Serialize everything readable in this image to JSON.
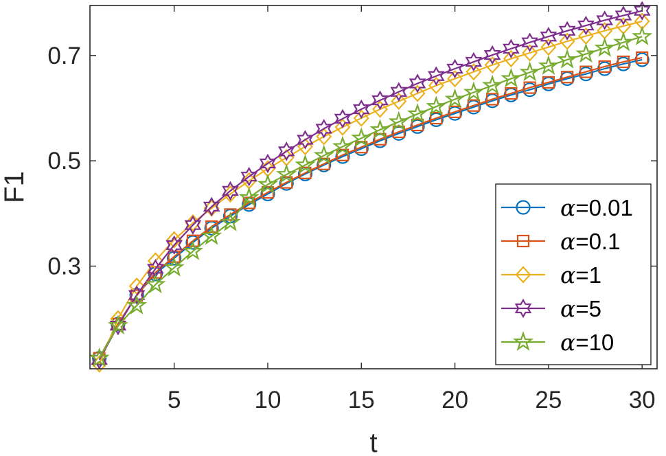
{
  "chart_data": {
    "type": "line",
    "title": "",
    "xlabel": "t",
    "ylabel": "F1",
    "xlim": [
      0.5,
      30.8
    ],
    "ylim": [
      0.105,
      0.795
    ],
    "xticks": [
      5,
      10,
      15,
      20,
      25,
      30
    ],
    "yticks": [
      0.3,
      0.5,
      0.7
    ],
    "xtick_labels": [
      "5",
      "10",
      "15",
      "20",
      "25",
      "30"
    ],
    "ytick_labels": [
      "0.3",
      "0.5",
      "0.7"
    ],
    "grid": false,
    "legend_position": "bottom-right",
    "x": [
      1,
      2,
      3,
      4,
      5,
      6,
      7,
      8,
      9,
      10,
      11,
      12,
      13,
      14,
      15,
      16,
      17,
      18,
      19,
      20,
      21,
      22,
      23,
      24,
      25,
      26,
      27,
      28,
      29,
      30
    ],
    "series": [
      {
        "name": "α=0.01",
        "legend_prefix": "α",
        "legend_value": "=0.01",
        "color": "#0072BD",
        "marker": "circle",
        "values": [
          0.125,
          0.19,
          0.245,
          0.285,
          0.315,
          0.345,
          0.372,
          0.395,
          0.417,
          0.437,
          0.457,
          0.475,
          0.492,
          0.508,
          0.523,
          0.538,
          0.552,
          0.565,
          0.578,
          0.59,
          0.602,
          0.614,
          0.625,
          0.635,
          0.646,
          0.656,
          0.665,
          0.675,
          0.684,
          0.692
        ]
      },
      {
        "name": "α=0.1",
        "legend_prefix": "α",
        "legend_value": "=0.1",
        "color": "#D95319",
        "marker": "square",
        "values": [
          0.125,
          0.19,
          0.244,
          0.288,
          0.318,
          0.348,
          0.375,
          0.398,
          0.42,
          0.44,
          0.459,
          0.477,
          0.494,
          0.511,
          0.526,
          0.541,
          0.555,
          0.568,
          0.581,
          0.593,
          0.605,
          0.617,
          0.628,
          0.639,
          0.649,
          0.659,
          0.669,
          0.679,
          0.688,
          0.696
        ]
      },
      {
        "name": "α=1",
        "legend_prefix": "α",
        "legend_value": "=1",
        "color": "#EDB120",
        "marker": "diamond",
        "values": [
          0.114,
          0.2,
          0.262,
          0.31,
          0.35,
          0.382,
          0.41,
          0.437,
          0.462,
          0.485,
          0.506,
          0.527,
          0.546,
          0.564,
          0.581,
          0.598,
          0.613,
          0.628,
          0.643,
          0.656,
          0.669,
          0.682,
          0.694,
          0.705,
          0.716,
          0.727,
          0.737,
          0.747,
          0.756,
          0.765
        ]
      },
      {
        "name": "α=5",
        "legend_prefix": "α",
        "legend_value": "=5",
        "color": "#7E2F8E",
        "marker": "hexagram",
        "values": [
          0.122,
          0.187,
          0.245,
          0.295,
          0.34,
          0.378,
          0.413,
          0.443,
          0.47,
          0.495,
          0.518,
          0.54,
          0.561,
          0.58,
          0.598,
          0.615,
          0.631,
          0.647,
          0.661,
          0.675,
          0.688,
          0.701,
          0.713,
          0.725,
          0.736,
          0.747,
          0.757,
          0.767,
          0.776,
          0.785
        ]
      },
      {
        "name": "α=10",
        "legend_prefix": "α",
        "legend_value": "=10",
        "color": "#77AC30",
        "marker": "pentagram",
        "values": [
          0.125,
          0.187,
          0.225,
          0.265,
          0.297,
          0.328,
          0.357,
          0.383,
          0.43,
          0.455,
          0.474,
          0.492,
          0.51,
          0.527,
          0.543,
          0.559,
          0.574,
          0.589,
          0.603,
          0.617,
          0.63,
          0.643,
          0.656,
          0.668,
          0.68,
          0.692,
          0.703,
          0.714,
          0.725,
          0.736
        ]
      }
    ]
  }
}
